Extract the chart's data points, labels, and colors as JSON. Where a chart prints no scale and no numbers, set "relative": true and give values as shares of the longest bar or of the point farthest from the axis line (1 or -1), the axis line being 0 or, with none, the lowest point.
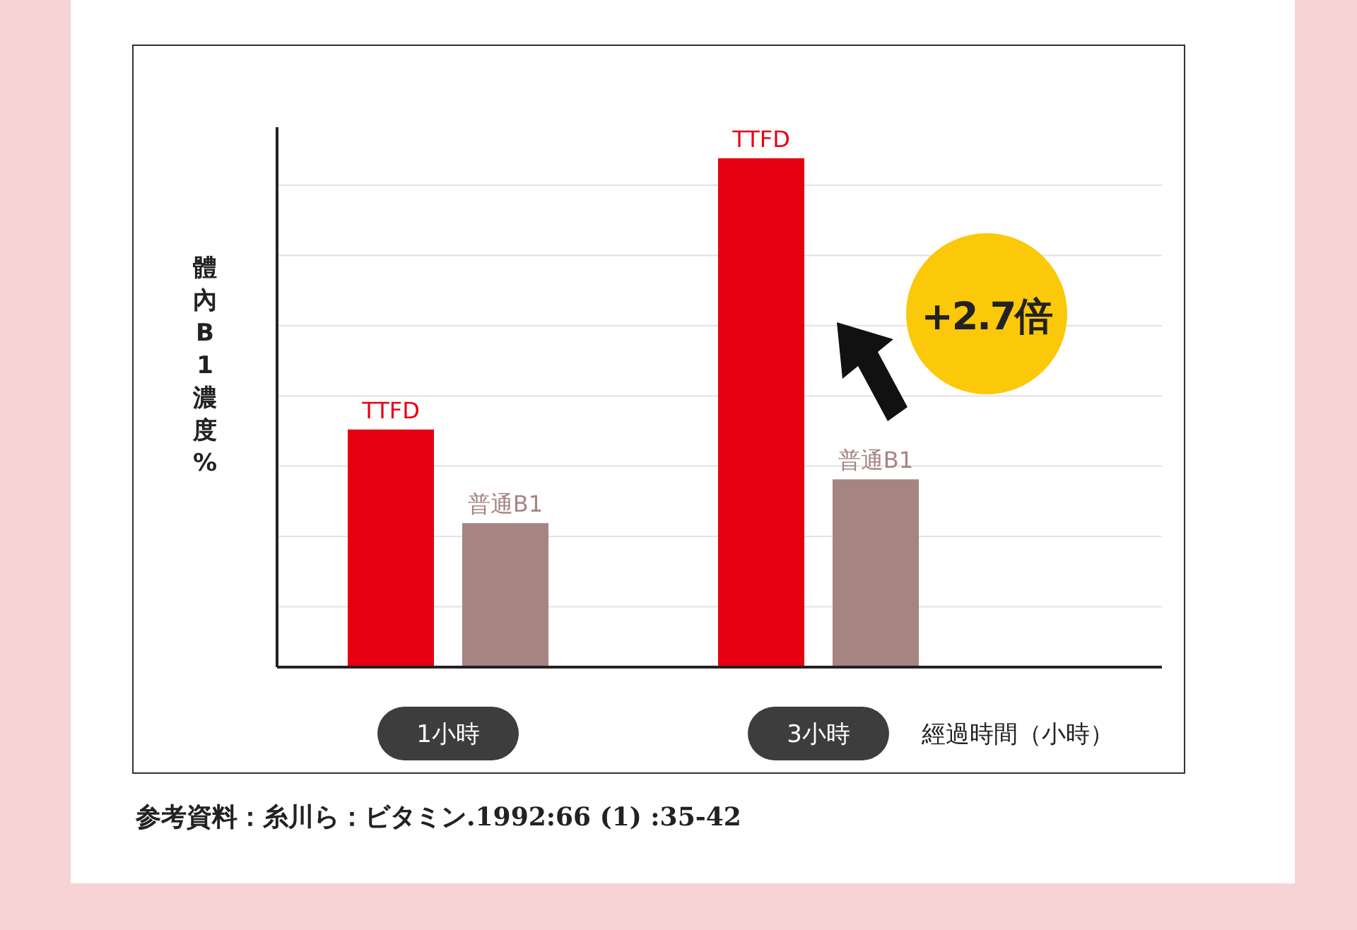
{
  "chart_data": {
    "type": "bar",
    "relative": true,
    "grid": "y",
    "ylabel": "體內B1濃度%",
    "xlabel": "經過時間（小時）",
    "categories": [
      "1小時",
      "3小時"
    ],
    "series": [
      {
        "name": "TTFD",
        "color": "#e60012",
        "values": [
          0.467,
          1
        ]
      },
      {
        "name": "普通B1",
        "color": "#a58482",
        "values": [
          0.283,
          0.369
        ]
      }
    ],
    "annotations": [
      "+2.7倍",
      "参考資料：糸川ら：ビタミン.1992:66 (1) :35-42"
    ]
  }
}
